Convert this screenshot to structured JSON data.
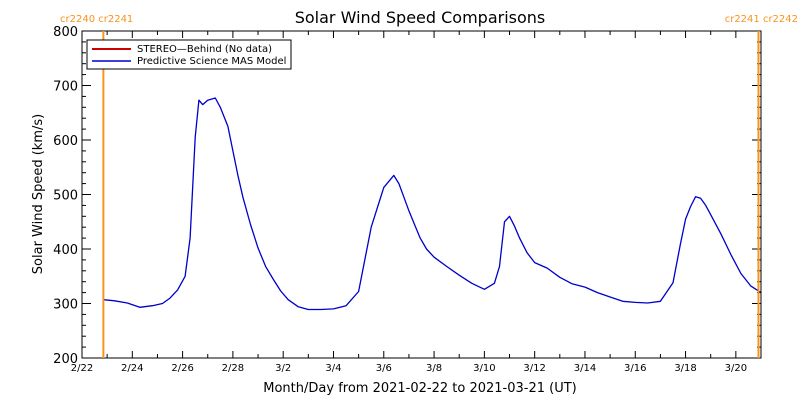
{
  "chart_data": {
    "type": "line",
    "title": "Solar Wind Speed Comparisons",
    "xlabel": "Month/Day from 2021-02-22 to 2021-03-21 (UT)",
    "ylabel": "Solar Wind Speed (km/s)",
    "ylim": [
      200,
      800
    ],
    "yticks": [
      200,
      300,
      400,
      500,
      600,
      700,
      800
    ],
    "xlim_days": [
      0,
      27
    ],
    "xticks": [
      {
        "day": 0,
        "label": "2/22"
      },
      {
        "day": 2,
        "label": "2/24"
      },
      {
        "day": 4,
        "label": "2/26"
      },
      {
        "day": 6,
        "label": "2/28"
      },
      {
        "day": 8,
        "label": "3/2"
      },
      {
        "day": 10,
        "label": "3/4"
      },
      {
        "day": 12,
        "label": "3/6"
      },
      {
        "day": 14,
        "label": "3/8"
      },
      {
        "day": 16,
        "label": "3/10"
      },
      {
        "day": 18,
        "label": "3/12"
      },
      {
        "day": 20,
        "label": "3/14"
      },
      {
        "day": 22,
        "label": "3/16"
      },
      {
        "day": 24,
        "label": "3/18"
      },
      {
        "day": 26,
        "label": "3/20"
      }
    ],
    "carrington_markers": [
      {
        "day": 0.85,
        "label": "cr2240 cr2241",
        "side": "left",
        "color": "#f7941d"
      },
      {
        "day": 26.9,
        "label": "cr2241 cr2242",
        "side": "right",
        "color": "#f7941d"
      }
    ],
    "legend": {
      "placement": "top-left",
      "entries": [
        {
          "name": "STEREO—Behind (No data)",
          "color": "#cc0000"
        },
        {
          "name": "Predictive Science MAS Model",
          "color": "#0000cc"
        }
      ]
    },
    "series": [
      {
        "name": "Predictive Science MAS Model",
        "color": "#0000cc",
        "x": [
          0.85,
          1.3,
          1.8,
          2.3,
          2.8,
          3.2,
          3.5,
          3.8,
          4.1,
          4.3,
          4.5,
          4.65,
          4.8,
          5.0,
          5.3,
          5.5,
          5.8,
          6.0,
          6.2,
          6.4,
          6.7,
          7.0,
          7.3,
          7.6,
          7.9,
          8.2,
          8.6,
          9.0,
          9.5,
          10.0,
          10.5,
          11.0,
          11.5,
          12.0,
          12.4,
          12.6,
          12.8,
          13.0,
          13.25,
          13.45,
          13.7,
          14.0,
          14.5,
          15.0,
          15.5,
          16.0,
          16.4,
          16.6,
          16.8,
          17.0,
          17.2,
          17.4,
          17.7,
          18.0,
          18.5,
          19.0,
          19.5,
          20.0,
          20.5,
          21.0,
          21.5,
          22.0,
          22.5,
          23.0,
          23.5,
          23.8,
          24.0,
          24.2,
          24.4,
          24.6,
          24.8,
          25.0,
          25.4,
          25.8,
          26.2,
          26.6,
          27.0
        ],
        "y": [
          307,
          305,
          301,
          293,
          296,
          300,
          310,
          325,
          350,
          420,
          605,
          673,
          665,
          673,
          677,
          660,
          625,
          580,
          535,
          495,
          445,
          402,
          368,
          345,
          323,
          307,
          294,
          289,
          289,
          290,
          296,
          322,
          440,
          513,
          535,
          520,
          495,
          470,
          442,
          420,
          400,
          385,
          368,
          352,
          337,
          326,
          337,
          368,
          450,
          460,
          442,
          420,
          393,
          375,
          365,
          348,
          336,
          330,
          320,
          312,
          304,
          302,
          301,
          304,
          338,
          410,
          455,
          478,
          496,
          493,
          480,
          463,
          428,
          390,
          355,
          332,
          320
        ]
      }
    ]
  }
}
